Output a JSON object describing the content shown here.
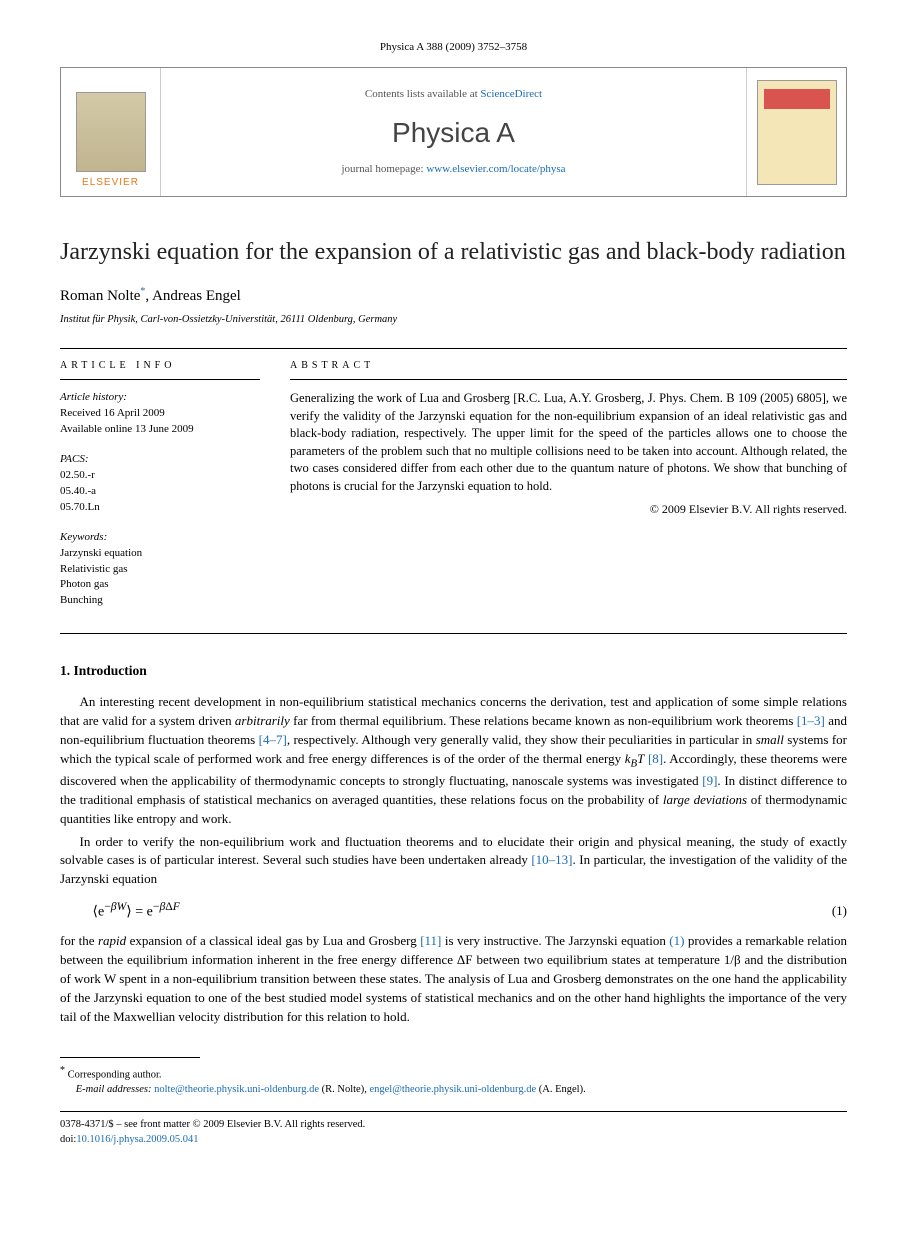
{
  "header": {
    "citation": "Physica A 388 (2009) 3752–3758"
  },
  "masthead": {
    "contents_prefix": "Contents lists available at ",
    "contents_link": "ScienceDirect",
    "journal": "Physica A",
    "homepage_prefix": "journal homepage: ",
    "homepage_link": "www.elsevier.com/locate/physa",
    "publisher": "ELSEVIER"
  },
  "article": {
    "title": "Jarzynski equation for the expansion of a relativistic gas and black-body radiation",
    "authors_html": "Roman Nolte",
    "author1": "Roman Nolte",
    "author1_mark": "*",
    "author_sep": ", ",
    "author2": "Andreas Engel",
    "affiliation": "Institut für Physik, Carl-von-Ossietzky-Universtität, 26111 Oldenburg, Germany"
  },
  "info": {
    "head": "ARTICLE INFO",
    "history_label": "Article history:",
    "received": "Received 16 April 2009",
    "online": "Available online 13 June 2009",
    "pacs_label": "PACS:",
    "pacs": [
      "02.50.-r",
      "05.40.-a",
      "05.70.Ln"
    ],
    "keywords_label": "Keywords:",
    "keywords": [
      "Jarzynski equation",
      "Relativistic gas",
      "Photon gas",
      "Bunching"
    ]
  },
  "abstract": {
    "head": "ABSTRACT",
    "text": "Generalizing the work of Lua and Grosberg [R.C. Lua, A.Y. Grosberg, J. Phys. Chem. B 109 (2005) 6805], we verify the validity of the Jarzynski equation for the non-equilibrium expansion of an ideal relativistic gas and black-body radiation, respectively. The upper limit for the speed of the particles allows one to choose the parameters of the problem such that no multiple collisions need to be taken into account. Although related, the two cases considered differ from each other due to the quantum nature of photons. We show that bunching of photons is crucial for the Jarzynski equation to hold.",
    "copyright": "© 2009 Elsevier B.V. All rights reserved."
  },
  "sections": {
    "s1_head": "1.  Introduction",
    "p1a": "An interesting recent development in non-equilibrium statistical mechanics concerns the derivation, test and application of some simple relations that are valid for a system driven ",
    "p1_arb": "arbitrarily",
    "p1b": " far from thermal equilibrium. These relations became known as non-equilibrium work theorems ",
    "ref_1_3": "[1–3]",
    "p1c": " and non-equilibrium fluctuation theorems ",
    "ref_4_7": "[4–7]",
    "p1d": ", respectively. Although very generally valid, they show their peculiarities in particular in ",
    "p1_small": "small",
    "p1e": " systems for which the typical scale of performed work and free energy differences is of the order of the thermal energy ",
    "p1_kbt": "k_B T",
    "p1f": " ",
    "ref_8": "[8]",
    "p1g": ". Accordingly, these theorems were discovered when the applicability of thermodynamic concepts to strongly fluctuating, nanoscale systems was investigated ",
    "ref_9": "[9]",
    "p1h": ". In distinct difference to the traditional emphasis of statistical mechanics on averaged quantities, these relations focus on the probability of ",
    "p1_large": "large deviations",
    "p1i": " of thermodynamic quantities like entropy and work.",
    "p2a": "In order to verify the non-equilibrium work and fluctuation theorems and to elucidate their origin and physical meaning, the study of exactly solvable cases is of particular interest. Several such studies have been undertaken already ",
    "ref_10_13": "[10–13]",
    "p2b": ". In particular, the investigation of the validity of the Jarzynski equation",
    "eq1": "⟨e^{−βW}⟩ = e^{−βΔF}",
    "eq1_num": "(1)",
    "p3a": "for the ",
    "p3_rapid": "rapid",
    "p3b": " expansion of a classical ideal gas by Lua and Grosberg ",
    "ref_11": "[11]",
    "p3c": " is very instructive. The Jarzynski equation ",
    "ref_eq1": "(1)",
    "p3d": " provides a remarkable relation between the equilibrium information inherent in the free energy difference ΔF between two equilibrium states at temperature 1/β and the distribution of work W spent in a non-equilibrium transition between these states. The analysis of Lua and Grosberg demonstrates on the one hand the applicability of the Jarzynski equation to one of the best studied model systems of statistical mechanics and on the other hand highlights the importance of the very tail of the Maxwellian velocity distribution for this relation to hold."
  },
  "footnotes": {
    "corr_mark": "*",
    "corr_label": "Corresponding author.",
    "email_label": "E-mail addresses:",
    "email1": "nolte@theorie.physik.uni-oldenburg.de",
    "email1_name": " (R. Nolte), ",
    "email2": "engel@theorie.physik.uni-oldenburg.de",
    "email2_name": " (A. Engel)."
  },
  "footer": {
    "issn_line": "0378-4371/$ – see front matter © 2009 Elsevier B.V. All rights reserved.",
    "doi_label": "doi:",
    "doi": "10.1016/j.physa.2009.05.041"
  }
}
